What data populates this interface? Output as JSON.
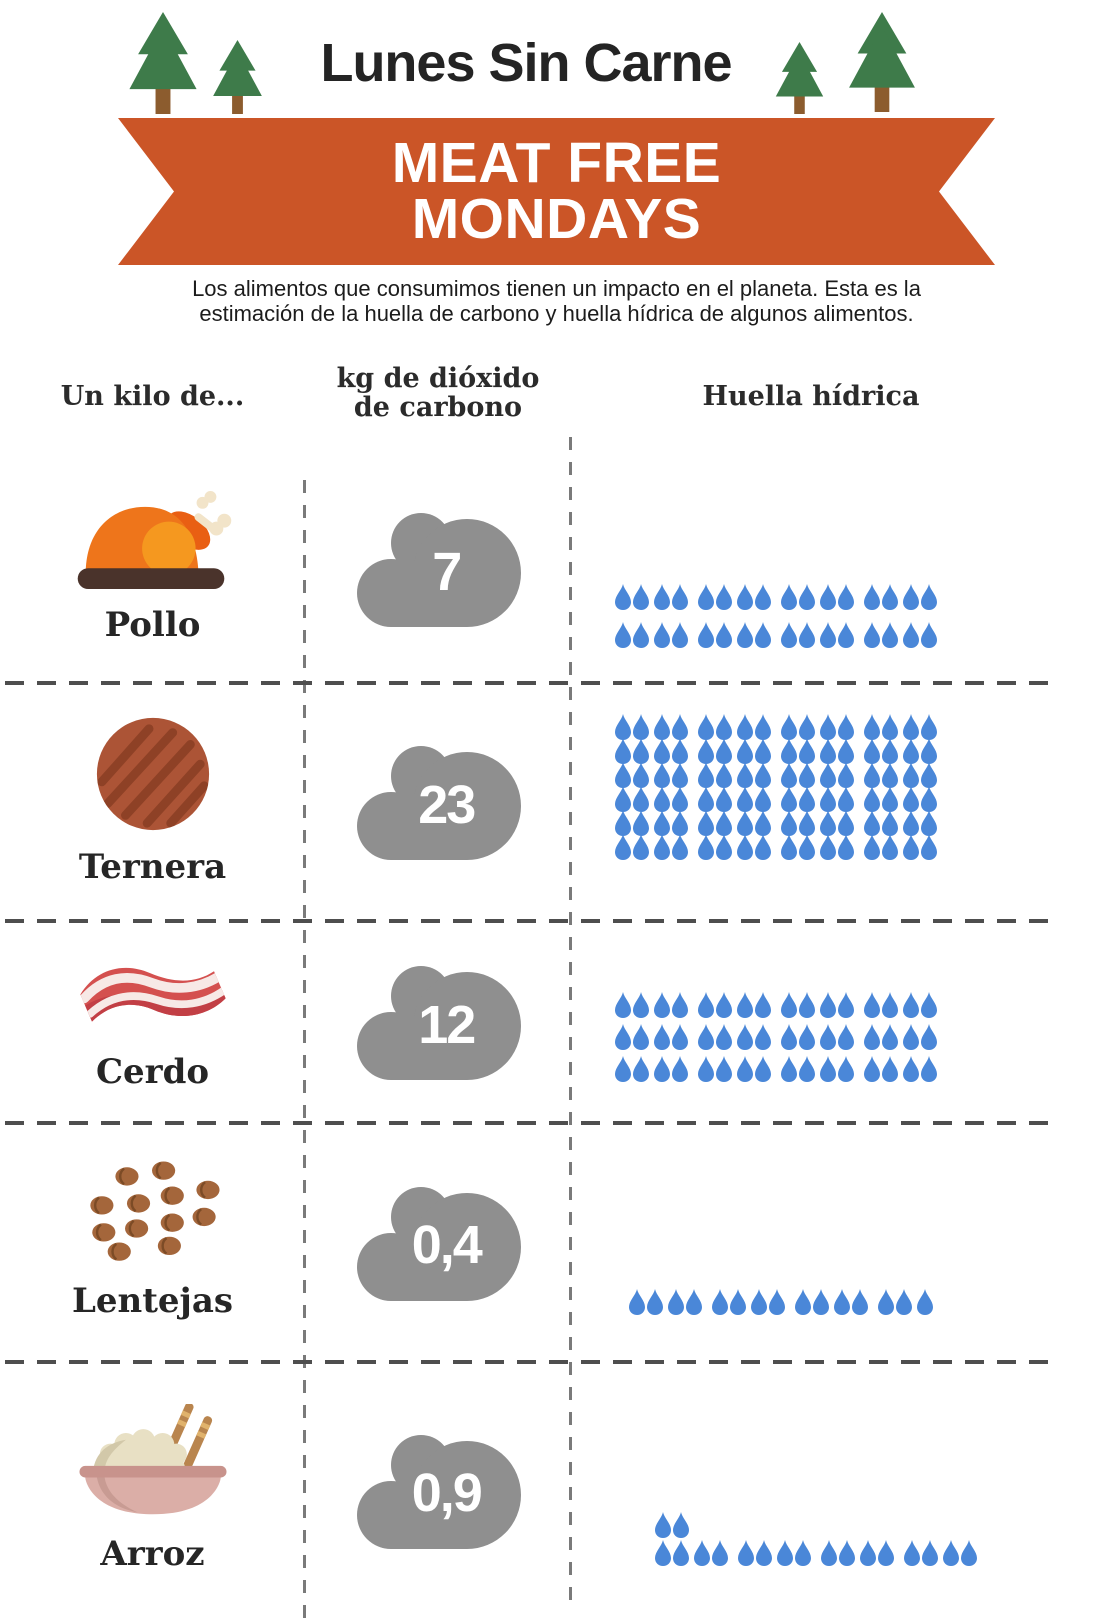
{
  "header": {
    "title": "Lunes Sin Carne",
    "banner_line1": "MEAT FREE",
    "banner_line2": "MONDAYS",
    "intro_line1": "Los alimentos que consumimos tienen un impacto en el planeta. Esta es la",
    "intro_line2": "estimación de la huella de carbono y huella hídrica de algunos alimentos."
  },
  "columns": {
    "food": "Un kilo de...",
    "co2_line1": "kg de dióxido",
    "co2_line2": "de carbono",
    "water": "Huella hídrica"
  },
  "colors": {
    "banner_orange": "#CB5527",
    "tree_green": "#3E7B4A",
    "trunk_brown": "#8C5C2E",
    "cloud_gray": "#8F8F8F",
    "drop_blue": "#4A87D8",
    "text_dark": "#262626"
  },
  "rows": [
    {
      "label": "Pollo",
      "icon": "chicken-icon",
      "co2": "7",
      "drop_rows": [
        16,
        16
      ],
      "drops_total": 32
    },
    {
      "label": "Ternera",
      "icon": "burger-patty-icon",
      "co2": "23",
      "drop_rows": [
        16,
        16,
        16,
        16,
        16,
        16
      ],
      "drops_total": 96
    },
    {
      "label": "Cerdo",
      "icon": "bacon-icon",
      "co2": "12",
      "drop_rows": [
        16,
        16,
        16
      ],
      "drops_total": 48
    },
    {
      "label": "Lentejas",
      "icon": "lentils-icon",
      "co2": "0,4",
      "drop_rows": [
        15
      ],
      "drops_total": 15
    },
    {
      "label": "Arroz",
      "icon": "rice-bowl-icon",
      "co2": "0,9",
      "drop_rows": [
        2,
        16
      ],
      "drops_total": 18
    }
  ],
  "chart_data": {
    "type": "table",
    "title": "Lunes Sin Carne / Meat Free Mondays",
    "subtitle": "Los alimentos que consumimos tienen un impacto en el planeta. Esta es la estimación de la huella de carbono y huella hídrica de algunos alimentos.",
    "categories": [
      "Pollo",
      "Ternera",
      "Cerdo",
      "Lentejas",
      "Arroz"
    ],
    "series": [
      {
        "name": "kg de dióxido de carbono",
        "values": [
          7,
          23,
          12,
          0.4,
          0.9
        ]
      },
      {
        "name": "Huella hídrica (número de gotas)",
        "values": [
          32,
          96,
          48,
          15,
          18
        ]
      }
    ],
    "notes": "La huella hídrica se representa con pictogramas de gotas de agua; el CO2 se muestra dentro de nubes grises."
  }
}
